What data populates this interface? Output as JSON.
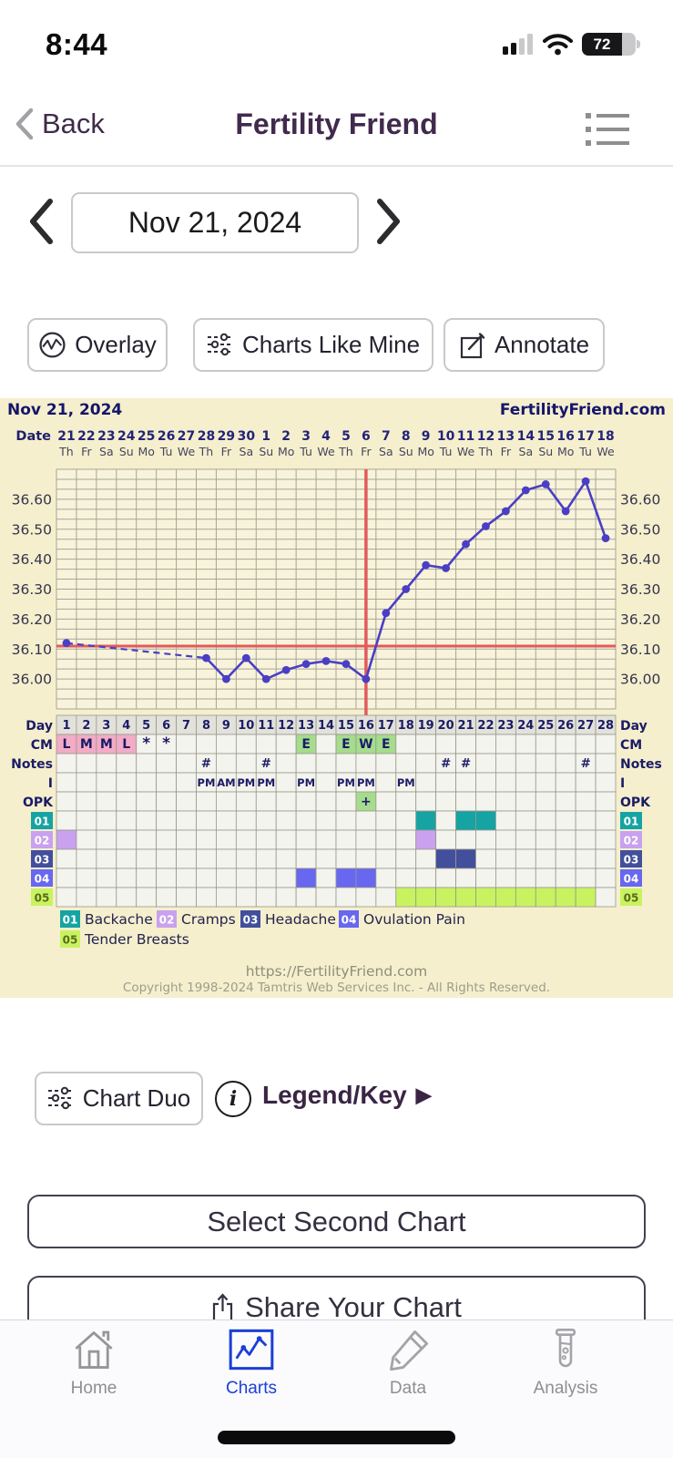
{
  "status_bar": {
    "time": "8:44",
    "battery_percent": "72"
  },
  "header": {
    "back": "Back",
    "title": "Fertility Friend"
  },
  "date_nav": {
    "date": "Nov 21, 2024"
  },
  "toolbar": {
    "overlay": "Overlay",
    "charts_like_mine": "Charts Like Mine",
    "annotate": "Annotate"
  },
  "panel": {
    "title_left": "Nov 21, 2024",
    "title_right": "FertilityFriend.com",
    "footer_url": "https://FertilityFriend.com",
    "footer_copyright": "Copyright 1998-2024 Tamtris Web Services Inc. - All Rights Reserved."
  },
  "chart_data": {
    "type": "line",
    "title": "Nov 21, 2024",
    "x_axis_label": "Date",
    "dates": [
      21,
      22,
      23,
      24,
      25,
      26,
      27,
      28,
      29,
      30,
      1,
      2,
      3,
      4,
      5,
      6,
      7,
      8,
      9,
      10,
      11,
      12,
      13,
      14,
      15,
      16,
      17,
      18
    ],
    "weekdays": [
      "Th",
      "Fr",
      "Sa",
      "Su",
      "Mo",
      "Tu",
      "We",
      "Th",
      "Fr",
      "Sa",
      "Su",
      "Mo",
      "Tu",
      "We",
      "Th",
      "Fr",
      "Sa",
      "Su",
      "Mo",
      "Tu",
      "We",
      "Th",
      "Fr",
      "Sa",
      "Su",
      "Mo",
      "Tu",
      "We"
    ],
    "days": [
      1,
      2,
      3,
      4,
      5,
      6,
      7,
      8,
      9,
      10,
      11,
      12,
      13,
      14,
      15,
      16,
      17,
      18,
      19,
      20,
      21,
      22,
      23,
      24,
      25,
      26,
      27,
      28
    ],
    "temperatures_c": [
      36.12,
      null,
      null,
      null,
      null,
      null,
      null,
      36.07,
      36.0,
      36.07,
      36.0,
      36.03,
      36.05,
      36.06,
      36.05,
      36.0,
      36.22,
      36.3,
      36.38,
      36.37,
      36.45,
      36.51,
      36.56,
      36.63,
      36.65,
      36.56,
      36.66,
      36.47
    ],
    "dashed_segment_days": [
      1,
      8
    ],
    "coverline_c": 36.11,
    "ovulation_line_day": 16,
    "ylim": [
      35.9,
      36.7
    ],
    "y_ticks": [
      "36.00",
      "36.10",
      "36.20",
      "36.30",
      "36.40",
      "36.50",
      "36.60"
    ],
    "colors": {
      "temp_line": "#4a3ec5",
      "red_line": "#e25a5a",
      "grid_line": "#a6a697",
      "plot_bg": "#f8f3da",
      "panel_bg": "#f5efcd",
      "navy": "#1e1e6e",
      "cm_pink": "#f3abc6",
      "cm_green": "#a5dc8d",
      "day_cell": "#e2e2db",
      "cell": "#f4f4ee"
    },
    "rows": {
      "day_label": "Day",
      "cm_label": "CM",
      "notes_label": "Notes",
      "intercourse_label": "I",
      "opk_label": "OPK",
      "cm": {
        "1": {
          "v": "L",
          "bg": "pink"
        },
        "2": {
          "v": "M",
          "bg": "pink"
        },
        "3": {
          "v": "M",
          "bg": "pink"
        },
        "4": {
          "v": "L",
          "bg": "pink"
        },
        "5": {
          "v": "*",
          "bg": null
        },
        "6": {
          "v": "*",
          "bg": null
        },
        "13": {
          "v": "E",
          "bg": "green"
        },
        "15": {
          "v": "E",
          "bg": "green"
        },
        "16": {
          "v": "W",
          "bg": "green"
        },
        "17": {
          "v": "E",
          "bg": "green"
        }
      },
      "notes_symbol": "#",
      "notes_days": [
        8,
        11,
        20,
        21,
        27
      ],
      "intercourse": {
        "8": "PM",
        "9": "AM",
        "10": "PM",
        "11": "PM",
        "13": "PM",
        "15": "PM",
        "16": "PM",
        "18": "PM"
      },
      "opk": {
        "16": "+"
      },
      "symptoms": [
        {
          "code": "01",
          "label": "Backache",
          "color": "#16a3a3",
          "text_color": "#ffffff",
          "days": [
            19,
            21,
            22
          ]
        },
        {
          "code": "02",
          "label": "Cramps",
          "color": "#c9a1ef",
          "text_color": "#ffffff",
          "days": [
            1,
            19
          ]
        },
        {
          "code": "03",
          "label": "Headache",
          "color": "#424f9c",
          "text_color": "#ffffff",
          "days": [
            20,
            21
          ]
        },
        {
          "code": "04",
          "label": "Ovulation Pain",
          "color": "#6767f0",
          "text_color": "#ffffff",
          "days": [
            13,
            15,
            16
          ]
        },
        {
          "code": "05",
          "label": "Tender Breasts",
          "color": "#c9f260",
          "text_color": "#5a6b1d",
          "days": [
            18,
            19,
            20,
            21,
            22,
            23,
            24,
            25,
            26,
            27
          ]
        }
      ]
    }
  },
  "actions": {
    "chart_duo": "Chart Duo",
    "legend_key": "Legend/Key",
    "legend_key_arrow": "▶",
    "select_second_chart": "Select Second Chart",
    "share_chart": "Share Your Chart"
  },
  "tab_bar": {
    "items": [
      {
        "label": "Home",
        "active": false
      },
      {
        "label": "Charts",
        "active": true
      },
      {
        "label": "Data",
        "active": false
      },
      {
        "label": "Analysis",
        "active": false
      }
    ]
  }
}
